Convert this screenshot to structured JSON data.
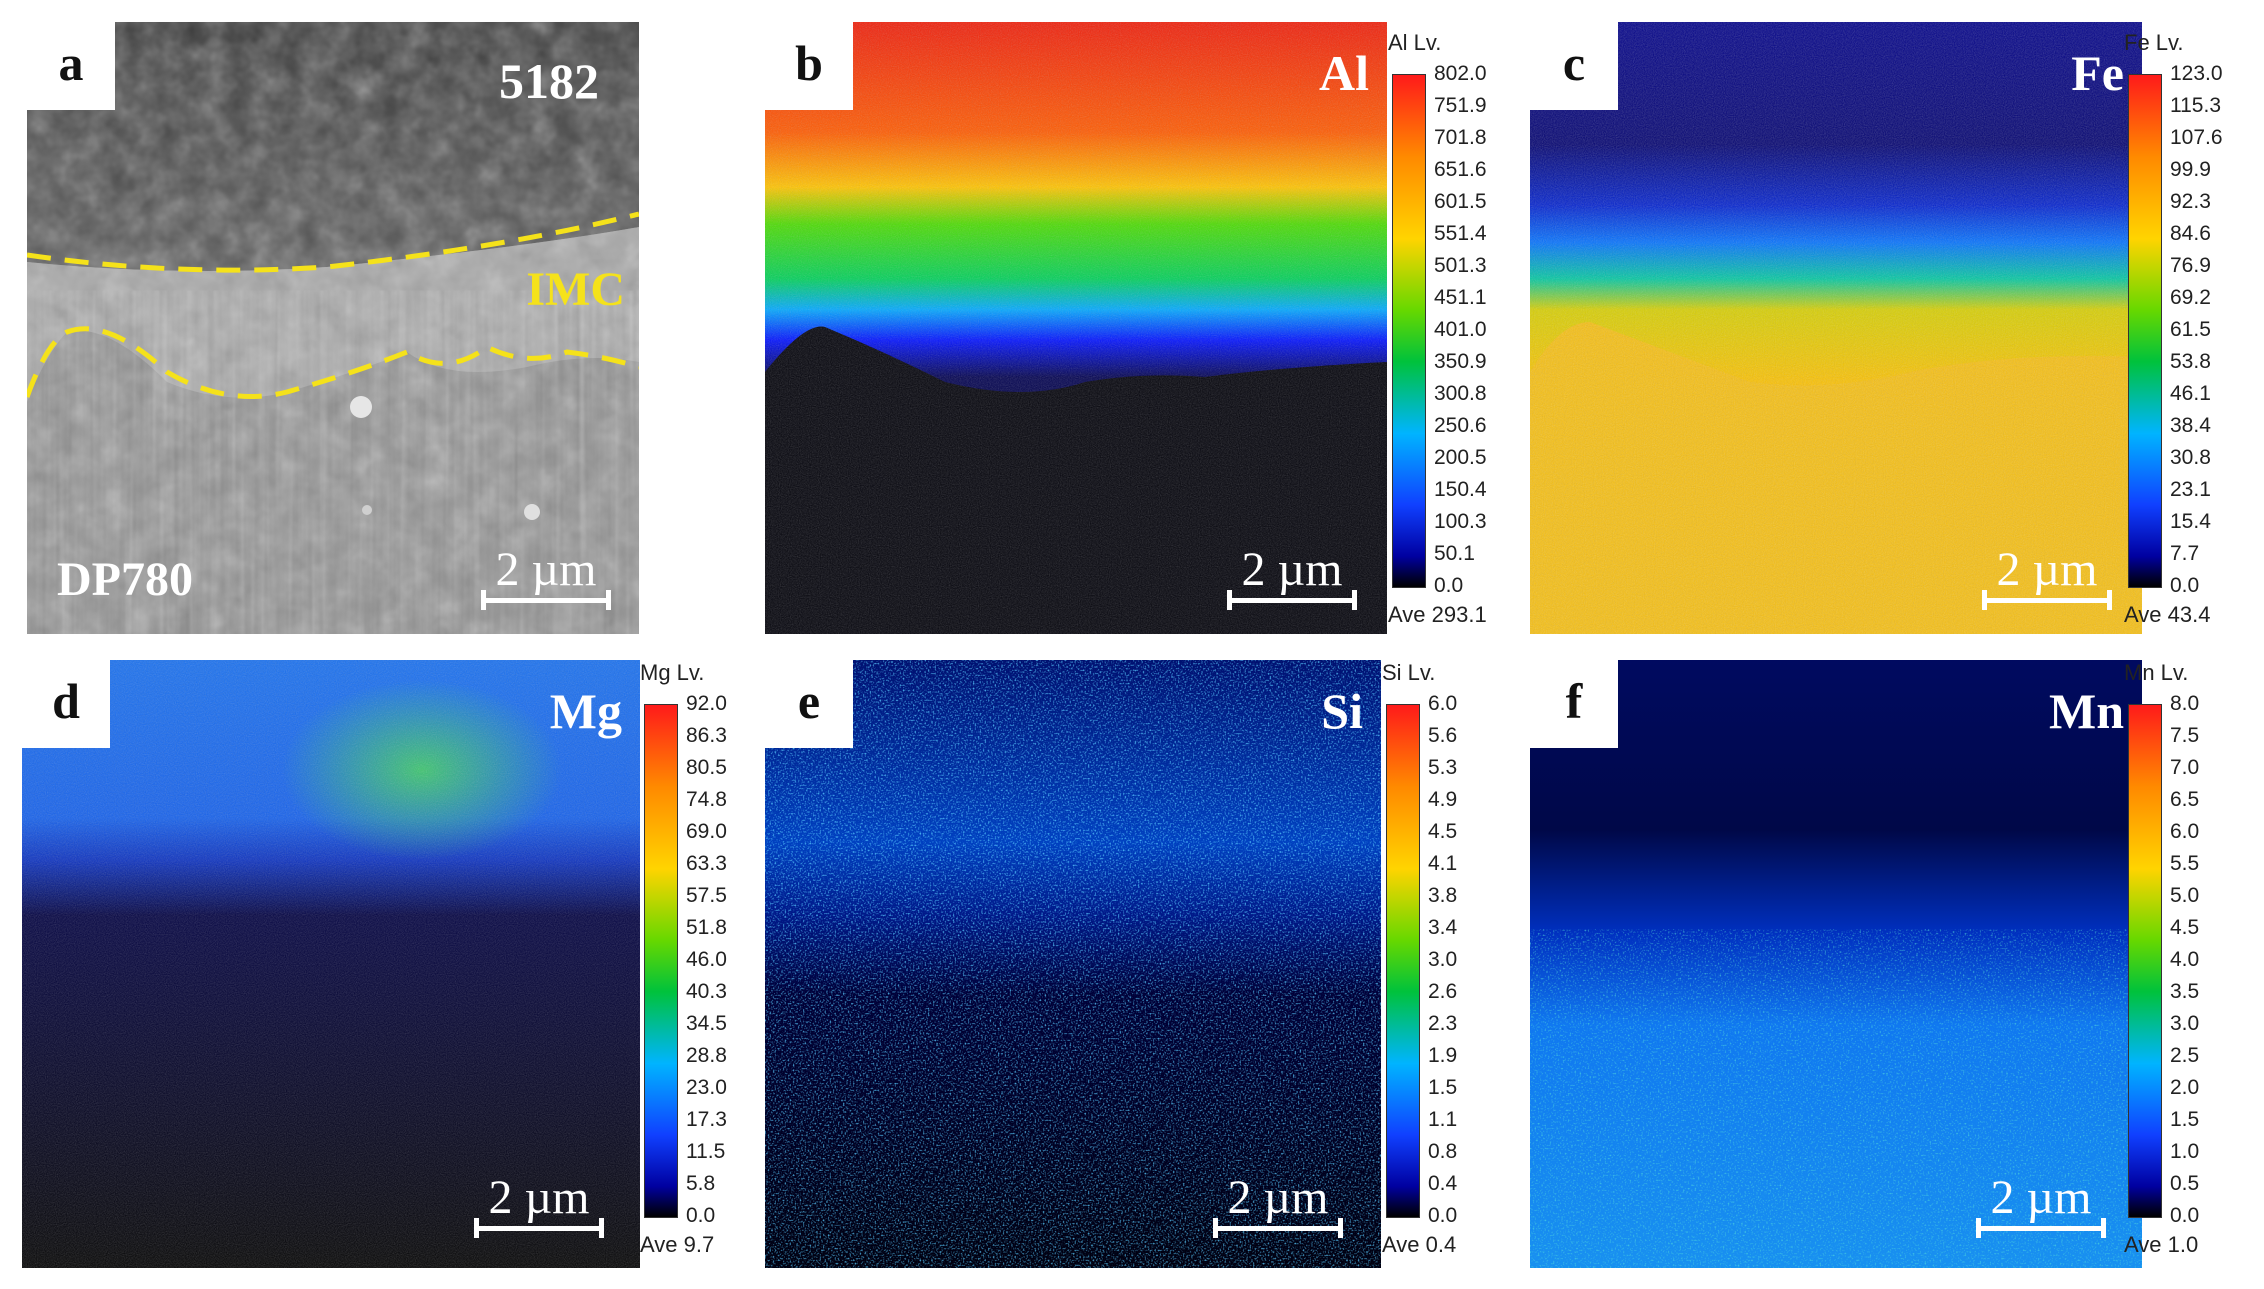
{
  "panels": [
    {
      "letter": "a",
      "element": "5182",
      "label_imc": "IMC",
      "label_base": "DP780",
      "scale": "2 µm"
    },
    {
      "letter": "b",
      "element": "Al",
      "scale": "2 µm",
      "colorbar": {
        "title": "Al  Lv.",
        "ticks": [
          "802.0",
          "751.9",
          "701.8",
          "651.6",
          "601.5",
          "551.4",
          "501.3",
          "451.1",
          "401.0",
          "350.9",
          "300.8",
          "250.6",
          "200.5",
          "150.4",
          "100.3",
          "50.1",
          "0.0"
        ],
        "ave": "Ave 293.1"
      }
    },
    {
      "letter": "c",
      "element": "Fe",
      "scale": "2 µm",
      "colorbar": {
        "title": "Fe  Lv.",
        "ticks": [
          "123.0",
          "115.3",
          "107.6",
          "99.9",
          "92.3",
          "84.6",
          "76.9",
          "69.2",
          "61.5",
          "53.8",
          "46.1",
          "38.4",
          "30.8",
          "23.1",
          "15.4",
          "7.7",
          "0.0"
        ],
        "ave": "Ave 43.4"
      }
    },
    {
      "letter": "d",
      "element": "Mg",
      "scale": "2 µm",
      "colorbar": {
        "title": "Mg  Lv.",
        "ticks": [
          "92.0",
          "86.3",
          "80.5",
          "74.8",
          "69.0",
          "63.3",
          "57.5",
          "51.8",
          "46.0",
          "40.3",
          "34.5",
          "28.8",
          "23.0",
          "17.3",
          "11.5",
          "5.8",
          "0.0"
        ],
        "ave": "Ave 9.7"
      }
    },
    {
      "letter": "e",
      "element": "Si",
      "scale": "2 µm",
      "colorbar": {
        "title": "Si  Lv.",
        "ticks": [
          "6.0",
          "5.6",
          "5.3",
          "4.9",
          "4.5",
          "4.1",
          "3.8",
          "3.4",
          "3.0",
          "2.6",
          "2.3",
          "1.9",
          "1.5",
          "1.1",
          "0.8",
          "0.4",
          "0.0"
        ],
        "ave": "Ave 0.4"
      }
    },
    {
      "letter": "f",
      "element": "Mn",
      "scale": "2 µm",
      "colorbar": {
        "title": "Mn  Lv.",
        "ticks": [
          "8.0",
          "7.5",
          "7.0",
          "6.5",
          "6.0",
          "5.5",
          "5.0",
          "4.5",
          "4.0",
          "3.5",
          "3.0",
          "2.5",
          "2.0",
          "1.5",
          "1.0",
          "0.5",
          "0.0"
        ],
        "ave": "Ave 1.0"
      }
    }
  ],
  "colors": {
    "imc": "#f5e21a",
    "bar_text": "#ffffff"
  }
}
